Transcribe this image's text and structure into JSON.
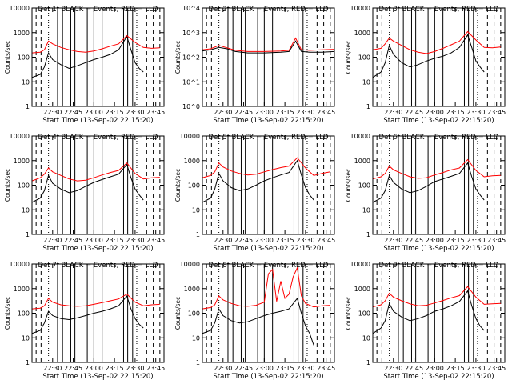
{
  "figure": {
    "xlabel": "Start Time (13-Sep-02 22:15:20)",
    "ylabel": "Counts/sec",
    "x_range_min": [
      22.25,
      23.85
    ],
    "x_ticks_min": [
      22.5,
      22.75,
      23.0,
      23.25,
      23.5,
      23.75
    ],
    "x_tick_labels": [
      "22:30",
      "22:45",
      "23:00",
      "23:15",
      "23:30",
      "23:45"
    ],
    "colors": {
      "events": "#000000",
      "lld": "#ff0000"
    }
  },
  "chart_data": [
    {
      "type": "line",
      "title": "Det 1f BLACK = Events, RED = LLD",
      "ylim": [
        1,
        10000
      ],
      "y_ticks": [
        1,
        10,
        100,
        1000,
        10000
      ],
      "y_tick_labels": [
        "1",
        "10",
        "100",
        "1000",
        "10000"
      ],
      "series": [
        {
          "name": "Events",
          "x": [
            22.25,
            22.35,
            22.4,
            22.45,
            22.5,
            22.6,
            22.7,
            22.8,
            22.9,
            23.0,
            23.1,
            23.2,
            23.3,
            23.4,
            23.45,
            23.5,
            23.55,
            23.6
          ],
          "values": [
            15,
            20,
            40,
            150,
            80,
            50,
            35,
            45,
            60,
            80,
            100,
            130,
            200,
            700,
            200,
            60,
            35,
            25
          ]
        },
        {
          "name": "LLD",
          "x": [
            22.25,
            22.35,
            22.4,
            22.45,
            22.5,
            22.6,
            22.7,
            22.8,
            22.9,
            23.0,
            23.1,
            23.2,
            23.3,
            23.4,
            23.5,
            23.6,
            23.7,
            23.8
          ],
          "values": [
            150,
            160,
            200,
            450,
            350,
            250,
            200,
            170,
            160,
            180,
            220,
            280,
            350,
            750,
            400,
            250,
            230,
            240
          ]
        }
      ]
    },
    {
      "type": "line",
      "title": "Det 2f BLACK = Events, RED = LLD",
      "ylim": [
        1,
        10000
      ],
      "y_ticks": [
        1,
        10,
        100,
        1000,
        10000
      ],
      "y_tick_labels": [
        "10^0",
        "10^1",
        "10^2",
        "10^3",
        "10^4"
      ],
      "series": [
        {
          "name": "Events",
          "x": [
            22.25,
            22.35,
            22.45,
            22.55,
            22.65,
            22.8,
            23.0,
            23.2,
            23.3,
            23.38,
            23.45,
            23.55,
            23.7,
            23.85
          ],
          "values": [
            180,
            200,
            250,
            220,
            170,
            150,
            150,
            160,
            170,
            450,
            170,
            160,
            160,
            170
          ]
        },
        {
          "name": "LLD",
          "x": [
            22.25,
            22.35,
            22.45,
            22.55,
            22.65,
            22.8,
            23.0,
            23.2,
            23.3,
            23.38,
            23.45,
            23.55,
            23.7,
            23.85
          ],
          "values": [
            200,
            220,
            300,
            240,
            190,
            170,
            170,
            180,
            190,
            600,
            200,
            190,
            200,
            210
          ]
        }
      ]
    },
    {
      "type": "line",
      "title": "Det 3f BLACK = Events, RED = LLD",
      "ylim": [
        1,
        10000
      ],
      "y_ticks": [
        1,
        10,
        100,
        1000,
        10000
      ],
      "y_tick_labels": [
        "1",
        "10",
        "100",
        "1000",
        "10000"
      ],
      "series": [
        {
          "name": "Events",
          "x": [
            22.25,
            22.35,
            22.4,
            22.45,
            22.5,
            22.6,
            22.7,
            22.8,
            22.9,
            23.0,
            23.1,
            23.2,
            23.3,
            23.4,
            23.45,
            23.5,
            23.55,
            23.6
          ],
          "values": [
            15,
            25,
            60,
            300,
            130,
            60,
            40,
            50,
            70,
            90,
            110,
            150,
            250,
            800,
            250,
            70,
            40,
            25
          ]
        },
        {
          "name": "LLD",
          "x": [
            22.25,
            22.35,
            22.4,
            22.45,
            22.5,
            22.6,
            22.7,
            22.8,
            22.9,
            23.0,
            23.1,
            23.2,
            23.3,
            23.4,
            23.5,
            23.6,
            23.7,
            23.8
          ],
          "values": [
            200,
            230,
            350,
            600,
            450,
            300,
            200,
            160,
            140,
            170,
            230,
            320,
            450,
            1100,
            500,
            250,
            240,
            260
          ]
        }
      ]
    },
    {
      "type": "line",
      "title": "Det 4f BLACK = Events, RED = LLD",
      "ylim": [
        1,
        10000
      ],
      "y_ticks": [
        1,
        10,
        100,
        1000,
        10000
      ],
      "y_tick_labels": [
        "1",
        "10",
        "100",
        "1000",
        "10000"
      ],
      "series": [
        {
          "name": "Events",
          "x": [
            22.25,
            22.35,
            22.4,
            22.45,
            22.5,
            22.6,
            22.7,
            22.8,
            22.9,
            23.0,
            23.1,
            23.2,
            23.3,
            23.4,
            23.45,
            23.5,
            23.55,
            23.6
          ],
          "values": [
            20,
            30,
            60,
            250,
            120,
            70,
            50,
            60,
            90,
            130,
            170,
            220,
            280,
            700,
            200,
            70,
            40,
            25
          ]
        },
        {
          "name": "LLD",
          "x": [
            22.25,
            22.35,
            22.4,
            22.45,
            22.5,
            22.6,
            22.7,
            22.8,
            22.9,
            23.0,
            23.1,
            23.2,
            23.3,
            23.4,
            23.5,
            23.6,
            23.7,
            23.8
          ],
          "values": [
            150,
            200,
            280,
            500,
            350,
            250,
            180,
            150,
            160,
            200,
            260,
            330,
            400,
            800,
            300,
            180,
            200,
            210
          ]
        }
      ]
    },
    {
      "type": "line",
      "title": "Det 5f BLACK = Events, RED = LLD",
      "ylim": [
        1,
        10000
      ],
      "y_ticks": [
        1,
        10,
        100,
        1000,
        10000
      ],
      "y_tick_labels": [
        "1",
        "10",
        "100",
        "1000",
        "10000"
      ],
      "series": [
        {
          "name": "Events",
          "x": [
            22.25,
            22.35,
            22.4,
            22.45,
            22.5,
            22.6,
            22.7,
            22.8,
            22.9,
            23.0,
            23.1,
            23.2,
            23.3,
            23.4,
            23.45,
            23.5,
            23.55,
            23.6
          ],
          "values": [
            20,
            30,
            70,
            300,
            150,
            80,
            60,
            70,
            100,
            150,
            200,
            260,
            330,
            1000,
            260,
            80,
            40,
            25
          ]
        },
        {
          "name": "LLD",
          "x": [
            22.25,
            22.35,
            22.4,
            22.45,
            22.5,
            22.6,
            22.7,
            22.8,
            22.9,
            23.0,
            23.1,
            23.2,
            23.3,
            23.4,
            23.5,
            23.6,
            23.7,
            23.8
          ],
          "values": [
            200,
            250,
            350,
            800,
            550,
            380,
            300,
            260,
            280,
            350,
            430,
            520,
            600,
            1300,
            500,
            250,
            300,
            350
          ]
        }
      ]
    },
    {
      "type": "line",
      "title": "Det 6f BLACK = Events, RED = LLD",
      "ylim": [
        1,
        10000
      ],
      "y_ticks": [
        1,
        10,
        100,
        1000,
        10000
      ],
      "y_tick_labels": [
        "1",
        "10",
        "100",
        "1000",
        "10000"
      ],
      "series": [
        {
          "name": "Events",
          "x": [
            22.25,
            22.35,
            22.4,
            22.45,
            22.5,
            22.6,
            22.7,
            22.8,
            22.9,
            23.0,
            23.1,
            23.2,
            23.3,
            23.4,
            23.45,
            23.5,
            23.55,
            23.6
          ],
          "values": [
            20,
            30,
            60,
            250,
            130,
            70,
            50,
            60,
            90,
            140,
            180,
            230,
            300,
            800,
            220,
            70,
            40,
            25
          ]
        },
        {
          "name": "LLD",
          "x": [
            22.25,
            22.35,
            22.4,
            22.45,
            22.5,
            22.6,
            22.7,
            22.8,
            22.9,
            23.0,
            23.1,
            23.2,
            23.3,
            23.4,
            23.5,
            23.6,
            23.7,
            23.8
          ],
          "values": [
            180,
            220,
            300,
            600,
            420,
            300,
            220,
            190,
            200,
            260,
            330,
            420,
            500,
            1100,
            400,
            220,
            240,
            250
          ]
        }
      ]
    },
    {
      "type": "line",
      "title": "Det 7f BLACK = Events, RED = LLD",
      "ylim": [
        1,
        10000
      ],
      "y_ticks": [
        1,
        10,
        100,
        1000,
        10000
      ],
      "y_tick_labels": [
        "1",
        "10",
        "100",
        "1000",
        "10000"
      ],
      "series": [
        {
          "name": "Events",
          "x": [
            22.25,
            22.35,
            22.4,
            22.45,
            22.5,
            22.6,
            22.7,
            22.8,
            22.9,
            23.0,
            23.1,
            23.2,
            23.3,
            23.4,
            23.45,
            23.5,
            23.55,
            23.6
          ],
          "values": [
            15,
            20,
            40,
            120,
            80,
            60,
            55,
            65,
            80,
            100,
            120,
            150,
            200,
            500,
            150,
            60,
            35,
            25
          ]
        },
        {
          "name": "LLD",
          "x": [
            22.25,
            22.35,
            22.4,
            22.45,
            22.5,
            22.6,
            22.7,
            22.8,
            22.9,
            23.0,
            23.1,
            23.2,
            23.3,
            23.4,
            23.5,
            23.6,
            23.7,
            23.8
          ],
          "values": [
            150,
            160,
            200,
            400,
            280,
            220,
            200,
            190,
            200,
            230,
            270,
            320,
            380,
            600,
            280,
            200,
            220,
            230
          ]
        }
      ]
    },
    {
      "type": "line",
      "title": "Det 8f BLACK = Events, RED = LLD",
      "ylim": [
        1,
        10000
      ],
      "y_ticks": [
        1,
        10,
        100,
        1000,
        10000
      ],
      "y_tick_labels": [
        "1",
        "10",
        "100",
        "1000",
        "10000"
      ],
      "series": [
        {
          "name": "Events",
          "x": [
            22.25,
            22.35,
            22.4,
            22.45,
            22.5,
            22.6,
            22.7,
            22.8,
            22.9,
            23.0,
            23.1,
            23.2,
            23.3,
            23.4,
            23.45,
            23.5,
            23.55,
            23.6
          ],
          "values": [
            15,
            20,
            40,
            150,
            80,
            50,
            40,
            45,
            60,
            80,
            100,
            120,
            150,
            400,
            100,
            30,
            15,
            5
          ]
        },
        {
          "name": "LLD",
          "x": [
            22.25,
            22.35,
            22.4,
            22.45,
            22.5,
            22.6,
            22.7,
            22.8,
            22.9,
            23.0,
            23.05,
            23.1,
            23.15,
            23.2,
            23.25,
            23.3,
            23.35,
            23.4,
            23.45,
            23.5,
            23.6,
            23.7,
            23.8
          ],
          "values": [
            150,
            170,
            220,
            500,
            350,
            250,
            200,
            190,
            210,
            280,
            4000,
            6000,
            300,
            2000,
            400,
            600,
            3000,
            7000,
            500,
            250,
            180,
            200,
            210
          ]
        }
      ]
    },
    {
      "type": "line",
      "title": "Det 9f BLACK = Events, RED = LLD",
      "ylim": [
        1,
        10000
      ],
      "y_ticks": [
        1,
        10,
        100,
        1000,
        10000
      ],
      "y_tick_labels": [
        "1",
        "10",
        "100",
        "1000",
        "10000"
      ],
      "series": [
        {
          "name": "Events",
          "x": [
            22.25,
            22.35,
            22.4,
            22.45,
            22.5,
            22.6,
            22.7,
            22.8,
            22.9,
            23.0,
            23.1,
            23.2,
            23.3,
            23.4,
            23.45,
            23.5,
            23.55,
            23.6
          ],
          "values": [
            15,
            25,
            50,
            250,
            120,
            70,
            50,
            60,
            80,
            120,
            150,
            200,
            300,
            800,
            200,
            60,
            30,
            20
          ]
        },
        {
          "name": "LLD",
          "x": [
            22.25,
            22.35,
            22.4,
            22.45,
            22.5,
            22.6,
            22.7,
            22.8,
            22.9,
            23.0,
            23.1,
            23.2,
            23.3,
            23.4,
            23.5,
            23.6,
            23.7,
            23.8
          ],
          "values": [
            180,
            220,
            320,
            650,
            450,
            320,
            240,
            200,
            210,
            260,
            330,
            420,
            520,
            1200,
            450,
            230,
            240,
            250
          ]
        }
      ]
    }
  ]
}
